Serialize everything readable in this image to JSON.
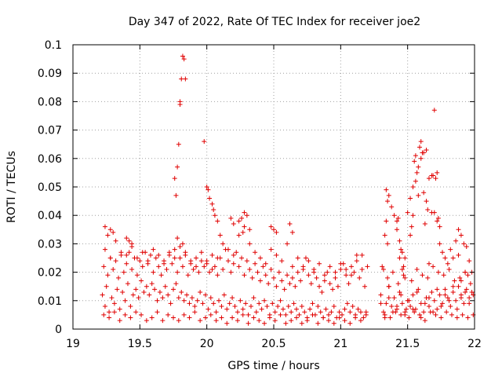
{
  "chart_data": {
    "type": "scatter",
    "title": "Day 347 of 2022, Rate Of TEC Index for receiver joe2",
    "xlabel": "GPS time / hours",
    "ylabel": "ROTI / TECUs",
    "xlim": [
      19,
      22
    ],
    "ylim": [
      0,
      0.1
    ],
    "x_ticks": [
      "19",
      "19.5",
      "20",
      "20.5",
      "21",
      "21.5",
      "22"
    ],
    "y_ticks": [
      "0",
      "0.01",
      "0.02",
      "0.03",
      "0.04",
      "0.05",
      "0.06",
      "0.07",
      "0.08",
      "0.09",
      "0.1"
    ],
    "grid": true,
    "marker": "+",
    "color": "#e00000",
    "series": [
      {
        "x": [
          19.22,
          19.24,
          19.25,
          19.27,
          19.29,
          19.31,
          19.33,
          19.35,
          19.37,
          19.39,
          19.41,
          19.43,
          19.45,
          19.47,
          19.49,
          19.51,
          19.53,
          19.55,
          19.57,
          19.59,
          19.61,
          19.63,
          19.65,
          19.67,
          19.69,
          19.71,
          19.73,
          19.75,
          19.77,
          19.79,
          19.81,
          19.83,
          19.85,
          19.87,
          19.89,
          19.91,
          19.93,
          19.95,
          19.97,
          19.99,
          20.01,
          20.03,
          20.05,
          20.07,
          20.09,
          20.11,
          20.13,
          20.15,
          20.17,
          20.19,
          20.21,
          20.23,
          20.25,
          20.27,
          20.29,
          20.31,
          20.33,
          20.35,
          20.37,
          20.39,
          20.41,
          20.43,
          20.45,
          20.47,
          20.49,
          20.51,
          20.53,
          20.55,
          20.57,
          20.59,
          20.61,
          20.63,
          20.65,
          20.67,
          20.69,
          20.71,
          20.73,
          20.75,
          20.77,
          20.79,
          20.81,
          20.83,
          20.85,
          20.87,
          20.89,
          20.91,
          20.93,
          20.95,
          20.97,
          20.99,
          21.01,
          21.03,
          21.05,
          21.07,
          21.09,
          21.11,
          21.13,
          21.15,
          21.17,
          21.19,
          19.23,
          19.26,
          19.28,
          19.3,
          19.32,
          19.34,
          19.36,
          19.38,
          19.4,
          19.42,
          19.44,
          19.46,
          19.48,
          19.5,
          19.52,
          19.54,
          19.56,
          19.58,
          19.6,
          19.62,
          19.64,
          19.66,
          19.68,
          19.7,
          19.72,
          19.74,
          19.76,
          19.78,
          19.8,
          19.82,
          19.84,
          19.86,
          19.88,
          19.9,
          19.92,
          19.94,
          19.96,
          19.98,
          20.0,
          20.02,
          20.04,
          20.06,
          20.08,
          20.1,
          20.12,
          20.14,
          20.16,
          20.18,
          20.2,
          20.22,
          20.24,
          20.26,
          20.28,
          20.3,
          20.32,
          20.34,
          20.36,
          20.38,
          20.4,
          20.42,
          20.44,
          20.46,
          20.48,
          20.5,
          20.52,
          20.54,
          20.56,
          20.58,
          20.6,
          20.62,
          20.64,
          20.66,
          20.68,
          20.7,
          20.72,
          20.74,
          20.76,
          20.78,
          20.8,
          20.82,
          20.84,
          20.86,
          20.88,
          20.9,
          20.92,
          20.94,
          20.96,
          20.98,
          21.0,
          21.02,
          21.04,
          21.06,
          21.08,
          21.1,
          21.12,
          21.14,
          21.16,
          21.18,
          19.23,
          19.27,
          19.31,
          19.35,
          19.39,
          19.43,
          19.47,
          19.51,
          19.55,
          19.59,
          19.63,
          19.67,
          19.71,
          19.75,
          19.79,
          19.83,
          19.87,
          19.91,
          19.95,
          19.99,
          20.03,
          20.07,
          20.11,
          20.15,
          20.19,
          20.23,
          20.27,
          20.31,
          20.35,
          20.39,
          20.43,
          20.47,
          20.51,
          20.55,
          20.59,
          20.63,
          20.67,
          20.71,
          20.75,
          20.79,
          20.83,
          20.87,
          20.91,
          20.95,
          20.99,
          21.03,
          21.07,
          21.11,
          21.15,
          21.19,
          19.24,
          19.28,
          19.32,
          19.36,
          19.4,
          19.44,
          19.48,
          19.52,
          19.56,
          19.6,
          19.64,
          19.68,
          19.72,
          19.76,
          19.8,
          19.84,
          19.88,
          19.92,
          19.96,
          20.0,
          20.04,
          20.08,
          20.12,
          20.16,
          20.2,
          20.24,
          20.28,
          20.32,
          20.36,
          20.4,
          20.44,
          20.48,
          20.52,
          20.56,
          20.6,
          20.64,
          20.68,
          20.72,
          20.76,
          20.8,
          20.84,
          20.88,
          20.92,
          20.96,
          21.0,
          21.04,
          21.08,
          21.12,
          21.16,
          21.2,
          19.77,
          19.78,
          19.79,
          19.8,
          19.81,
          19.82,
          19.83,
          19.84,
          19.76,
          19.78,
          19.8,
          19.82,
          19.98,
          20.0,
          20.01,
          20.02,
          20.04,
          20.05,
          20.06,
          20.08,
          20.1,
          20.26,
          20.28,
          20.3,
          20.32,
          20.24,
          20.27,
          20.48,
          20.5,
          20.52,
          20.62,
          20.64,
          19.4,
          19.42,
          19.44,
          19.3,
          19.26,
          19.24,
          19.28,
          20.18,
          20.2,
          21.3,
          21.32,
          21.34,
          21.36,
          21.38,
          21.4,
          21.42,
          21.44,
          21.46,
          21.48,
          21.5,
          21.52,
          21.54,
          21.56,
          21.58,
          21.6,
          21.62,
          21.64,
          21.66,
          21.68,
          21.7,
          21.72,
          21.74,
          21.76,
          21.78,
          21.8,
          21.82,
          21.84,
          21.86,
          21.88,
          21.9,
          21.92,
          21.94,
          21.96,
          21.98,
          21.31,
          21.33,
          21.35,
          21.37,
          21.39,
          21.41,
          21.43,
          21.45,
          21.47,
          21.49,
          21.51,
          21.53,
          21.55,
          21.57,
          21.59,
          21.61,
          21.63,
          21.65,
          21.67,
          21.69,
          21.71,
          21.73,
          21.75,
          21.77,
          21.79,
          21.81,
          21.83,
          21.85,
          21.87,
          21.89,
          21.91,
          21.93,
          21.95,
          21.97,
          21.99,
          21.3,
          21.33,
          21.36,
          21.39,
          21.42,
          21.45,
          21.48,
          21.51,
          21.54,
          21.57,
          21.6,
          21.63,
          21.66,
          21.69,
          21.72,
          21.75,
          21.78,
          21.81,
          21.84,
          21.87,
          21.9,
          21.93,
          21.96,
          21.99,
          21.32,
          21.34,
          21.35,
          21.36,
          21.38,
          21.4,
          21.42,
          21.44,
          21.46,
          21.48,
          21.5,
          21.52,
          21.54,
          21.56,
          21.58,
          21.6,
          21.62,
          21.64,
          21.66,
          21.68,
          21.7,
          21.72,
          21.74,
          21.76,
          21.78,
          21.8,
          21.82,
          21.84,
          21.86,
          21.88,
          21.9,
          21.92,
          21.94,
          21.96,
          21.98,
          21.7,
          21.59,
          21.6,
          21.61,
          21.63,
          21.55,
          21.56,
          21.57,
          21.58,
          21.52,
          21.53,
          21.54,
          21.45,
          21.46,
          21.42,
          21.43,
          21.44,
          21.47,
          21.48,
          21.34,
          21.33,
          21.35,
          21.36,
          21.66,
          21.68,
          21.69,
          21.71,
          21.72,
          21.73,
          21.74,
          21.62,
          21.64,
          21.65,
          21.93,
          21.95,
          21.9,
          21.88
        ],
        "y": [
          0.012,
          0.008,
          0.015,
          0.006,
          0.011,
          0.009,
          0.014,
          0.007,
          0.013,
          0.01,
          0.016,
          0.008,
          0.012,
          0.014,
          0.011,
          0.017,
          0.013,
          0.015,
          0.012,
          0.016,
          0.014,
          0.01,
          0.013,
          0.011,
          0.015,
          0.012,
          0.009,
          0.014,
          0.016,
          0.011,
          0.013,
          0.01,
          0.012,
          0.009,
          0.011,
          0.008,
          0.01,
          0.013,
          0.009,
          0.012,
          0.007,
          0.011,
          0.009,
          0.006,
          0.01,
          0.008,
          0.012,
          0.007,
          0.009,
          0.011,
          0.008,
          0.006,
          0.01,
          0.007,
          0.009,
          0.005,
          0.008,
          0.011,
          0.006,
          0.009,
          0.007,
          0.01,
          0.008,
          0.005,
          0.009,
          0.006,
          0.008,
          0.01,
          0.007,
          0.005,
          0.008,
          0.006,
          0.009,
          0.007,
          0.005,
          0.008,
          0.006,
          0.004,
          0.007,
          0.009,
          0.005,
          0.008,
          0.006,
          0.004,
          0.007,
          0.005,
          0.006,
          0.008,
          0.004,
          0.006,
          0.005,
          0.007,
          0.009,
          0.006,
          0.008,
          0.005,
          0.007,
          0.006,
          0.004,
          0.006,
          0.022,
          0.019,
          0.025,
          0.021,
          0.024,
          0.018,
          0.026,
          0.02,
          0.023,
          0.027,
          0.021,
          0.025,
          0.019,
          0.024,
          0.022,
          0.027,
          0.023,
          0.026,
          0.02,
          0.025,
          0.022,
          0.019,
          0.024,
          0.021,
          0.026,
          0.023,
          0.028,
          0.02,
          0.025,
          0.022,
          0.027,
          0.019,
          0.023,
          0.021,
          0.025,
          0.02,
          0.024,
          0.022,
          0.023,
          0.02,
          0.026,
          0.022,
          0.019,
          0.025,
          0.021,
          0.028,
          0.024,
          0.02,
          0.023,
          0.027,
          0.022,
          0.025,
          0.019,
          0.024,
          0.021,
          0.018,
          0.023,
          0.02,
          0.017,
          0.022,
          0.019,
          0.016,
          0.021,
          0.018,
          0.015,
          0.02,
          0.017,
          0.014,
          0.019,
          0.016,
          0.018,
          0.015,
          0.02,
          0.017,
          0.022,
          0.025,
          0.019,
          0.016,
          0.021,
          0.018,
          0.015,
          0.013,
          0.017,
          0.02,
          0.016,
          0.014,
          0.018,
          0.015,
          0.021,
          0.023,
          0.019,
          0.016,
          0.022,
          0.02,
          0.026,
          0.018,
          0.021,
          0.015,
          0.005,
          0.004,
          0.006,
          0.003,
          0.005,
          0.004,
          0.006,
          0.005,
          0.003,
          0.004,
          0.006,
          0.003,
          0.005,
          0.004,
          0.003,
          0.005,
          0.004,
          0.006,
          0.003,
          0.004,
          0.005,
          0.003,
          0.004,
          0.002,
          0.004,
          0.003,
          0.005,
          0.002,
          0.004,
          0.003,
          0.002,
          0.004,
          0.003,
          0.005,
          0.002,
          0.003,
          0.004,
          0.002,
          0.003,
          0.005,
          0.002,
          0.004,
          0.003,
          0.002,
          0.004,
          0.003,
          0.002,
          0.004,
          0.003,
          0.005,
          0.028,
          0.025,
          0.031,
          0.027,
          0.026,
          0.029,
          0.025,
          0.027,
          0.024,
          0.028,
          0.026,
          0.023,
          0.027,
          0.025,
          0.029,
          0.026,
          0.024,
          0.022,
          0.027,
          0.024,
          0.021,
          0.025,
          0.03,
          0.028,
          0.026,
          0.033,
          0.036,
          0.03,
          0.027,
          0.025,
          0.023,
          0.028,
          0.026,
          0.024,
          0.03,
          0.022,
          0.025,
          0.021,
          0.024,
          0.02,
          0.023,
          0.019,
          0.022,
          0.02,
          0.023,
          0.021,
          0.019,
          0.024,
          0.026,
          0.022,
          0.047,
          0.057,
          0.065,
          0.079,
          0.088,
          0.096,
          0.095,
          0.088,
          0.053,
          0.032,
          0.08,
          0.03,
          0.066,
          0.05,
          0.049,
          0.046,
          0.044,
          0.042,
          0.04,
          0.038,
          0.033,
          0.039,
          0.041,
          0.04,
          0.035,
          0.038,
          0.034,
          0.036,
          0.035,
          0.034,
          0.037,
          0.034,
          0.032,
          0.031,
          0.03,
          0.034,
          0.033,
          0.036,
          0.035,
          0.039,
          0.037,
          0.012,
          0.006,
          0.009,
          0.015,
          0.008,
          0.011,
          0.007,
          0.013,
          0.009,
          0.006,
          0.01,
          0.008,
          0.012,
          0.007,
          0.014,
          0.009,
          0.006,
          0.011,
          0.008,
          0.013,
          0.01,
          0.007,
          0.012,
          0.009,
          0.014,
          0.011,
          0.008,
          0.013,
          0.01,
          0.015,
          0.012,
          0.009,
          0.014,
          0.011,
          0.013,
          0.022,
          0.005,
          0.018,
          0.004,
          0.02,
          0.006,
          0.016,
          0.005,
          0.019,
          0.007,
          0.004,
          0.017,
          0.006,
          0.021,
          0.005,
          0.019,
          0.003,
          0.018,
          0.006,
          0.022,
          0.005,
          0.02,
          0.004,
          0.019,
          0.006,
          0.021,
          0.005,
          0.017,
          0.004,
          0.018,
          0.005,
          0.02,
          0.004,
          0.016,
          0.005,
          0.009,
          0.004,
          0.011,
          0.006,
          0.008,
          0.012,
          0.005,
          0.01,
          0.007,
          0.013,
          0.004,
          0.009,
          0.011,
          0.006,
          0.014,
          0.008,
          0.012,
          0.01,
          0.015,
          0.007,
          0.011,
          0.013,
          0.009,
          0.012,
          0.021,
          0.049,
          0.045,
          0.047,
          0.043,
          0.04,
          0.038,
          0.031,
          0.027,
          0.025,
          0.041,
          0.046,
          0.05,
          0.061,
          0.057,
          0.06,
          0.062,
          0.063,
          0.053,
          0.054,
          0.041,
          0.038,
          0.03,
          0.027,
          0.025,
          0.023,
          0.028,
          0.025,
          0.031,
          0.035,
          0.033,
          0.03,
          0.029,
          0.024,
          0.02,
          0.077,
          0.064,
          0.066,
          0.062,
          0.037,
          0.059,
          0.052,
          0.055,
          0.047,
          0.033,
          0.036,
          0.04,
          0.028,
          0.021,
          0.035,
          0.039,
          0.025,
          0.022,
          0.018,
          0.038,
          0.033,
          0.03,
          0.015,
          0.023,
          0.041,
          0.054,
          0.053,
          0.055,
          0.039,
          0.036,
          0.048,
          0.045,
          0.042,
          0.02,
          0.019,
          0.017,
          0.026
        ]
      }
    ]
  }
}
